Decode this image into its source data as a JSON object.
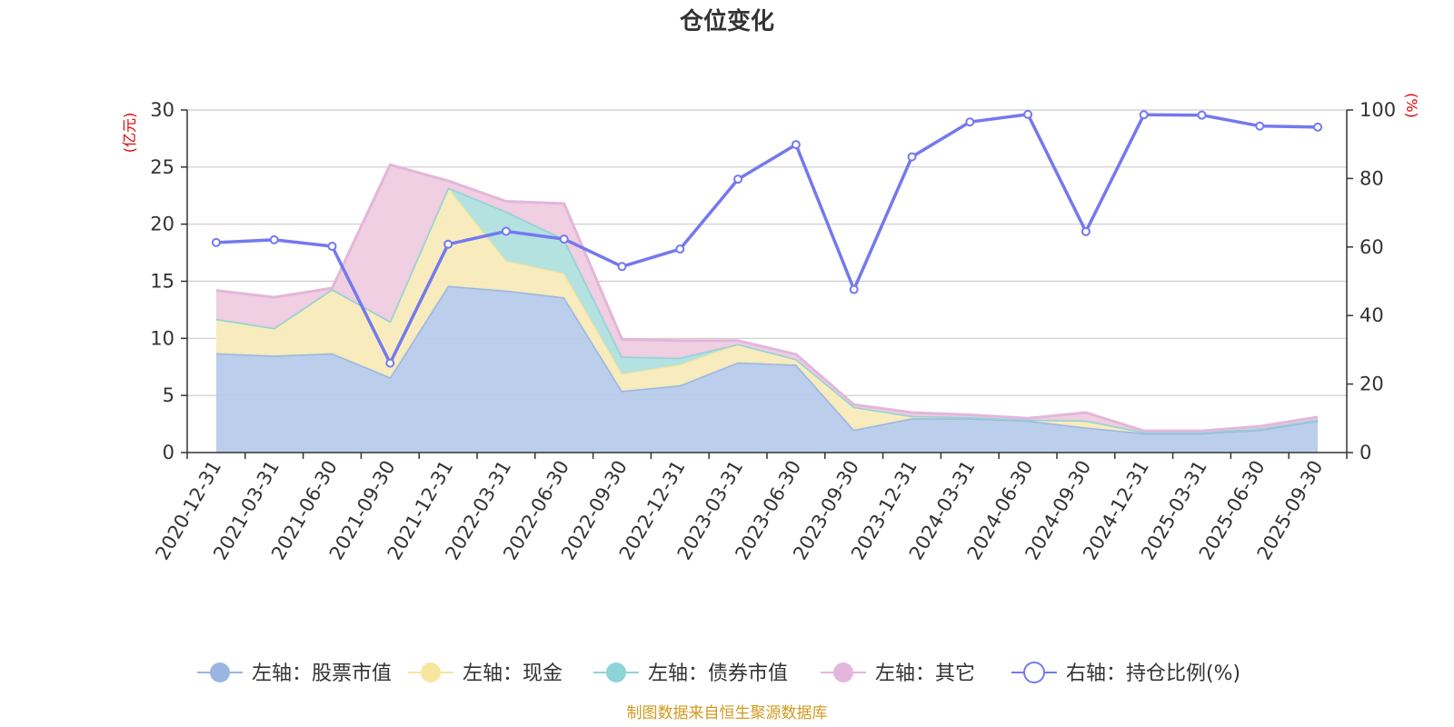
{
  "chart_data": {
    "type": "area",
    "title": "仓位变化",
    "left_axis": {
      "unit": "(亿元)",
      "min": 0,
      "max": 30,
      "ticks": [
        0,
        5,
        10,
        15,
        20,
        25,
        30
      ]
    },
    "right_axis": {
      "unit": "(%)",
      "min": 0,
      "max": 100,
      "ticks": [
        0,
        20,
        40,
        60,
        80,
        100
      ]
    },
    "categories": [
      "2020-12-31",
      "2021-03-31",
      "2021-06-30",
      "2021-09-30",
      "2021-12-31",
      "2022-03-31",
      "2022-06-30",
      "2022-09-30",
      "2022-12-31",
      "2023-03-31",
      "2023-06-30",
      "2023-09-30",
      "2023-12-31",
      "2024-03-31",
      "2024-06-30",
      "2024-09-30",
      "2024-12-31",
      "2025-03-31",
      "2025-06-30",
      "2025-09-30"
    ],
    "series": [
      {
        "name": "左轴：股票市值",
        "axis": "left",
        "kind": "stacked-area",
        "color": "#9ab6e0",
        "fill": "#b7cbea",
        "values": [
          8.7,
          8.5,
          8.7,
          6.6,
          14.6,
          14.2,
          13.6,
          5.4,
          5.9,
          7.9,
          7.7,
          2.0,
          3.0,
          3.0,
          2.8,
          2.2,
          1.7,
          1.7,
          2.0,
          2.8
        ]
      },
      {
        "name": "左轴：现金",
        "axis": "left",
        "kind": "stacked-area",
        "color": "#f7e5a0",
        "fill": "#f8ebbc",
        "values": [
          3.0,
          2.4,
          5.6,
          4.9,
          8.6,
          2.6,
          2.1,
          1.5,
          1.8,
          1.6,
          0.5,
          2.0,
          0.2,
          0.1,
          0.1,
          0.6,
          0.1,
          0.1,
          0.1,
          0.1
        ]
      },
      {
        "name": "左轴：债券市值",
        "axis": "left",
        "kind": "stacked-area",
        "color": "#8dd4d6",
        "fill": "#b0e0df",
        "values": [
          0,
          0,
          0,
          0,
          0,
          4.3,
          3.0,
          1.5,
          0.6,
          0,
          0,
          0,
          0,
          0,
          0,
          0,
          0,
          0,
          0,
          0
        ]
      },
      {
        "name": "左轴：其它",
        "axis": "left",
        "kind": "stacked-area",
        "color": "#e3b6db",
        "fill": "#eeccdf",
        "values": [
          2.5,
          2.7,
          0.1,
          13.7,
          0.6,
          0.9,
          3.1,
          1.5,
          1.5,
          0.3,
          0.4,
          0.2,
          0.3,
          0.2,
          0.1,
          0.7,
          0.1,
          0.1,
          0.2,
          0.2
        ]
      },
      {
        "name": "右轴：持仓比例(%)",
        "axis": "right",
        "kind": "line",
        "color": "#7479ee",
        "values": [
          61.3,
          62.1,
          60.2,
          26.1,
          60.8,
          64.6,
          62.3,
          54.3,
          59.4,
          79.8,
          89.9,
          47.6,
          86.3,
          96.5,
          98.7,
          64.5,
          98.6,
          98.5,
          95.3,
          95.0
        ]
      }
    ],
    "legend_position": "bottom-center",
    "grid": true
  },
  "footer": {
    "source": "制图数据来自恒生聚源数据库"
  }
}
